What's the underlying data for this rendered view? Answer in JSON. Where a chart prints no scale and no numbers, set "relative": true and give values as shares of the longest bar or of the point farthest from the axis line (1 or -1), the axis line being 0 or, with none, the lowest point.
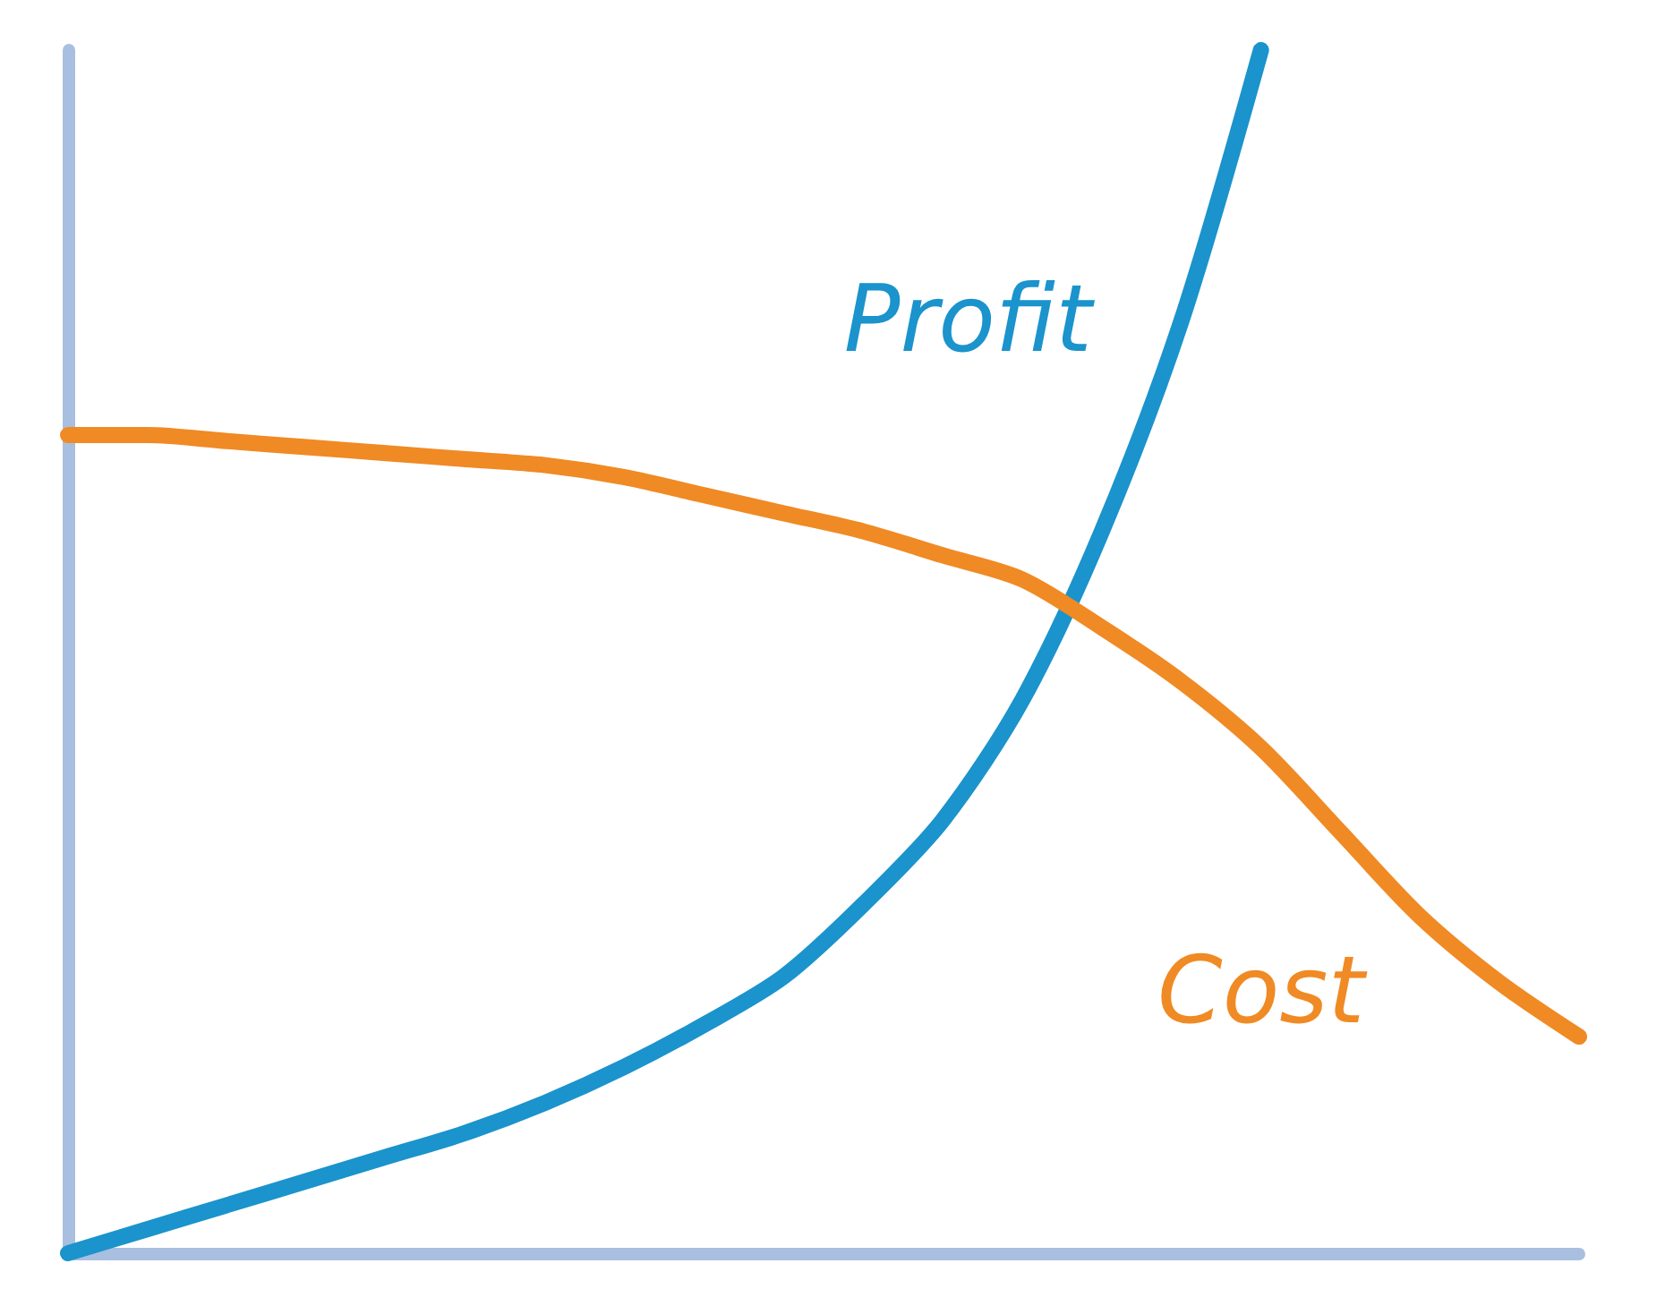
{
  "chart_data": {
    "type": "line",
    "relative": true,
    "line_style": "solid",
    "categories": [
      null,
      null,
      null,
      null,
      null,
      null,
      null,
      null,
      null,
      null,
      null,
      null,
      null,
      null,
      null,
      null,
      null,
      null,
      null,
      null
    ],
    "series": [
      {
        "name": "Profit",
        "color": "#1b93cc",
        "values": [
          0,
          0.02,
          0.04,
          0.06,
          0.08,
          0.1,
          0.125,
          0.155,
          0.19,
          0.23,
          0.29,
          0.36,
          0.46,
          0.6,
          0.775,
          1.0,
          null,
          null,
          null,
          null
        ]
      },
      {
        "name": "Cost",
        "color": "#f08a24",
        "values": [
          0.68,
          0.68,
          0.675,
          0.67,
          0.665,
          0.66,
          0.655,
          0.645,
          0.63,
          0.615,
          0.6,
          0.58,
          0.56,
          0.52,
          0.475,
          0.42,
          0.35,
          0.28,
          0.225,
          0.18
        ]
      }
    ]
  }
}
